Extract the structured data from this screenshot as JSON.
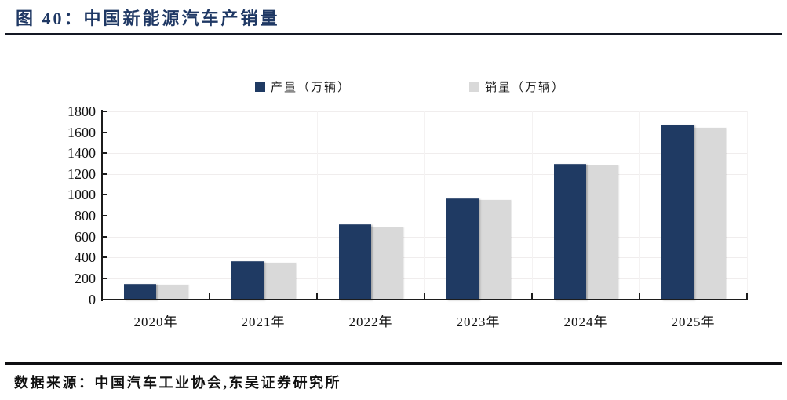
{
  "page": {
    "title": "图 40：中国新能源汽车产销量",
    "source": "数据来源：中国汽车工业协会,东吴证券研究所"
  },
  "colors": {
    "title_navy": "#1f3864",
    "production_bar": "#1f3a63",
    "sales_bar": "#d9d9d9",
    "axis": "#1c1c1c",
    "divider": "#141824"
  },
  "chart_data": {
    "type": "bar",
    "title": "中国新能源汽车产销量",
    "categories": [
      "2020年",
      "2021年",
      "2022年",
      "2023年",
      "2024年",
      "2025年"
    ],
    "series": [
      {
        "name": "产量（万辆）",
        "color": "#1f3a63",
        "values": [
          145,
          365,
          716,
          965,
          1300,
          1670
        ]
      },
      {
        "name": "销量（万辆）",
        "color": "#d9d9d9",
        "values": [
          136,
          353,
          689,
          950,
          1285,
          1645
        ]
      }
    ],
    "xlabel": "",
    "ylabel": "",
    "unit": "万辆",
    "ylim": [
      0,
      1800
    ],
    "ytick_step": 200,
    "yticks": [
      0,
      200,
      400,
      600,
      800,
      1000,
      1200,
      1400,
      1600,
      1800
    ],
    "grid": "faint",
    "legend_position": "top-center"
  }
}
